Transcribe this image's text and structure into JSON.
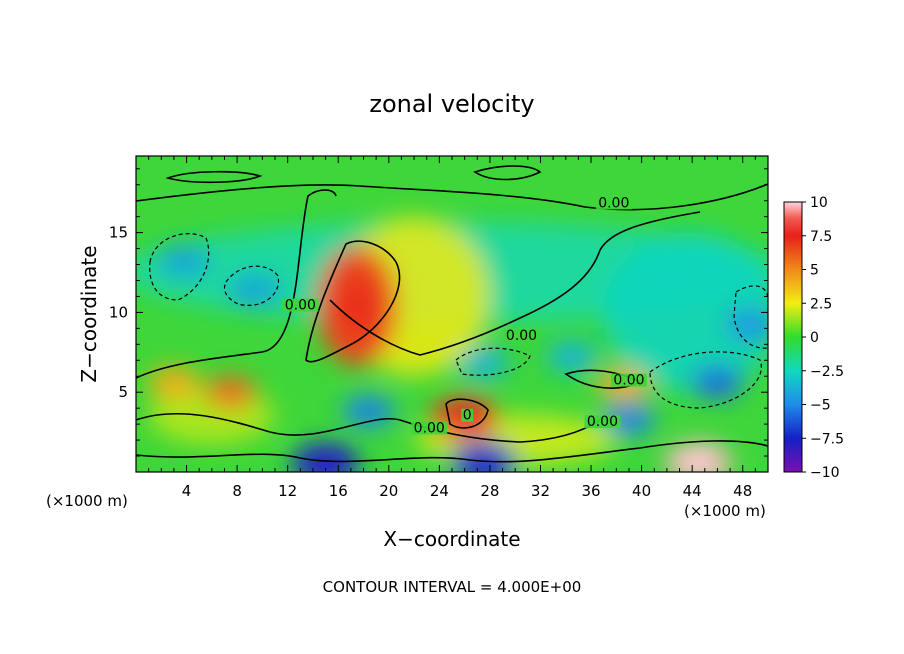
{
  "chart_data": {
    "type": "heatmap",
    "title": "zonal velocity",
    "xlabel": "X−coordinate",
    "ylabel": "Z−coordinate",
    "x_unit_left": "(×1000 m)",
    "x_unit_right": "(×1000 m)",
    "xlim": [
      0,
      50
    ],
    "ylim": [
      0,
      19.8
    ],
    "x_ticks": [
      4,
      8,
      12,
      16,
      20,
      24,
      28,
      32,
      36,
      40,
      44,
      48
    ],
    "y_ticks": [
      5,
      10,
      15
    ],
    "colorbar": {
      "min": -10,
      "max": 10,
      "tick_values": [
        10,
        7.5,
        5,
        2.5,
        0,
        -2.5,
        -5,
        -7.5,
        -10
      ],
      "tick_labels": [
        "10",
        "7.5",
        "5",
        "2.5",
        "0",
        "−2.5",
        "−5",
        "−7.5",
        "−10"
      ]
    },
    "contour_interval_text": "CONTOUR INTERVAL = 4.000E+00",
    "contour_labels": [
      {
        "text": "0.00",
        "x": 37.8,
        "y": 16.7
      },
      {
        "text": "0.00",
        "x": 13.0,
        "y": 10.3
      },
      {
        "text": "0.00",
        "x": 30.5,
        "y": 8.4
      },
      {
        "text": "0.00",
        "x": 23.2,
        "y": 2.6
      },
      {
        "text": "0.00",
        "x": 36.9,
        "y": 3.0
      },
      {
        "text": "0.00",
        "x": 39.0,
        "y": 5.6
      },
      {
        "text": "0",
        "x": 26.2,
        "y": 3.4
      }
    ],
    "features": [
      {
        "kind": "max",
        "x": 17.5,
        "y": 10.4,
        "value": 6.5
      },
      {
        "kind": "max",
        "x": 26.0,
        "y": 3.4,
        "value": 7.0
      },
      {
        "kind": "max",
        "x": 44.5,
        "y": 0.6,
        "value": 9.5
      },
      {
        "kind": "max",
        "x": 7.5,
        "y": 5.0,
        "value": 5.5
      },
      {
        "kind": "max",
        "x": 3.0,
        "y": 5.6,
        "value": 4.0
      },
      {
        "kind": "max",
        "x": 38.6,
        "y": 5.5,
        "value": 4.0
      },
      {
        "kind": "min",
        "x": 3.8,
        "y": 13.2,
        "value": -4.0
      },
      {
        "kind": "min",
        "x": 9.4,
        "y": 11.4,
        "value": -4.0
      },
      {
        "kind": "min",
        "x": 46.0,
        "y": 5.6,
        "value": -5.5
      },
      {
        "kind": "min",
        "x": 48.6,
        "y": 9.2,
        "value": -4.5
      },
      {
        "kind": "min",
        "x": 15.0,
        "y": 0.5,
        "value": -7.5
      },
      {
        "kind": "min",
        "x": 27.5,
        "y": 0.6,
        "value": -7.0
      },
      {
        "kind": "min",
        "x": 18.4,
        "y": 3.8,
        "value": -5.0
      },
      {
        "kind": "min",
        "x": 39.0,
        "y": 3.3,
        "value": -5.0
      },
      {
        "kind": "min",
        "x": 27.5,
        "y": 6.8,
        "value": -3.5
      },
      {
        "kind": "min",
        "x": 34.5,
        "y": 7.2,
        "value": -3.5
      }
    ]
  }
}
